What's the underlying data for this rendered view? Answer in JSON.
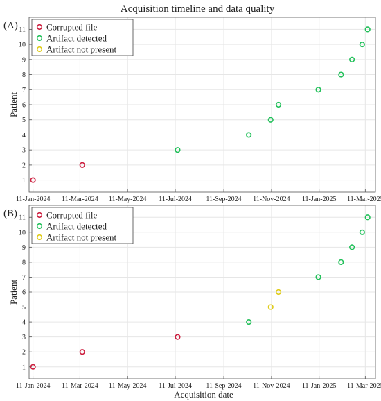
{
  "figure": {
    "title": "Acquisition timeline and data quality",
    "xlabel": "Acquisition date"
  },
  "colors": {
    "corrupted": "#cc1f3f",
    "artifact": "#22c05a",
    "noartifact": "#e0cc18"
  },
  "chart_data": [
    {
      "type": "scatter",
      "panel_label": "(A)",
      "title": "Acquisition timeline and data quality",
      "xlabel": "",
      "ylabel": "Patient",
      "xlim": [
        "2024-01-06",
        "2025-03-24"
      ],
      "ylim": [
        0.2,
        11.8
      ],
      "x_ticks": [
        "11-Jan-2024",
        "11-Mar-2024",
        "11-May-2024",
        "11-Jul-2024",
        "11-Sep-2024",
        "11-Nov-2024",
        "11-Jan-2025",
        "11-Mar-2025"
      ],
      "y_ticks": [
        1,
        2,
        3,
        4,
        5,
        6,
        7,
        8,
        9,
        10,
        11
      ],
      "grid": true,
      "legend_position": "top-left",
      "series": [
        {
          "name": "Corrupted file",
          "color": "#cc1f3f",
          "x": [
            "2024-01-11",
            "2024-03-14"
          ],
          "y": [
            1,
            2
          ]
        },
        {
          "name": "Artifact detected",
          "color": "#22c05a",
          "x": [
            "2024-07-14",
            "2024-10-13",
            "2024-11-10",
            "2024-11-20",
            "2025-01-10",
            "2025-02-08",
            "2025-02-22",
            "2025-03-07",
            "2025-03-14"
          ],
          "y": [
            3,
            4,
            5,
            6,
            7,
            8,
            9,
            10,
            11
          ]
        },
        {
          "name": "Artifact not present",
          "color": "#e0cc18",
          "x": [],
          "y": []
        }
      ]
    },
    {
      "type": "scatter",
      "panel_label": "(B)",
      "title": "",
      "xlabel": "Acquisition date",
      "ylabel": "Patient",
      "xlim": [
        "2024-01-06",
        "2025-03-24"
      ],
      "ylim": [
        0.2,
        11.8
      ],
      "x_ticks": [
        "11-Jan-2024",
        "11-Mar-2024",
        "11-May-2024",
        "11-Jul-2024",
        "11-Sep-2024",
        "11-Nov-2024",
        "11-Jan-2025",
        "11-Mar-2025"
      ],
      "y_ticks": [
        1,
        2,
        3,
        4,
        5,
        6,
        7,
        8,
        9,
        10,
        11
      ],
      "grid": true,
      "legend_position": "top-left",
      "series": [
        {
          "name": "Corrupted file",
          "color": "#cc1f3f",
          "x": [
            "2024-01-11",
            "2024-03-14",
            "2024-07-14"
          ],
          "y": [
            1,
            2,
            3
          ]
        },
        {
          "name": "Artifact detected",
          "color": "#22c05a",
          "x": [
            "2024-10-13",
            "2025-01-10",
            "2025-02-08",
            "2025-02-22",
            "2025-03-07",
            "2025-03-14"
          ],
          "y": [
            4,
            7,
            8,
            9,
            10,
            11
          ]
        },
        {
          "name": "Artifact not present",
          "color": "#e0cc18",
          "x": [
            "2024-11-10",
            "2024-11-20"
          ],
          "y": [
            5,
            6
          ]
        }
      ]
    }
  ]
}
